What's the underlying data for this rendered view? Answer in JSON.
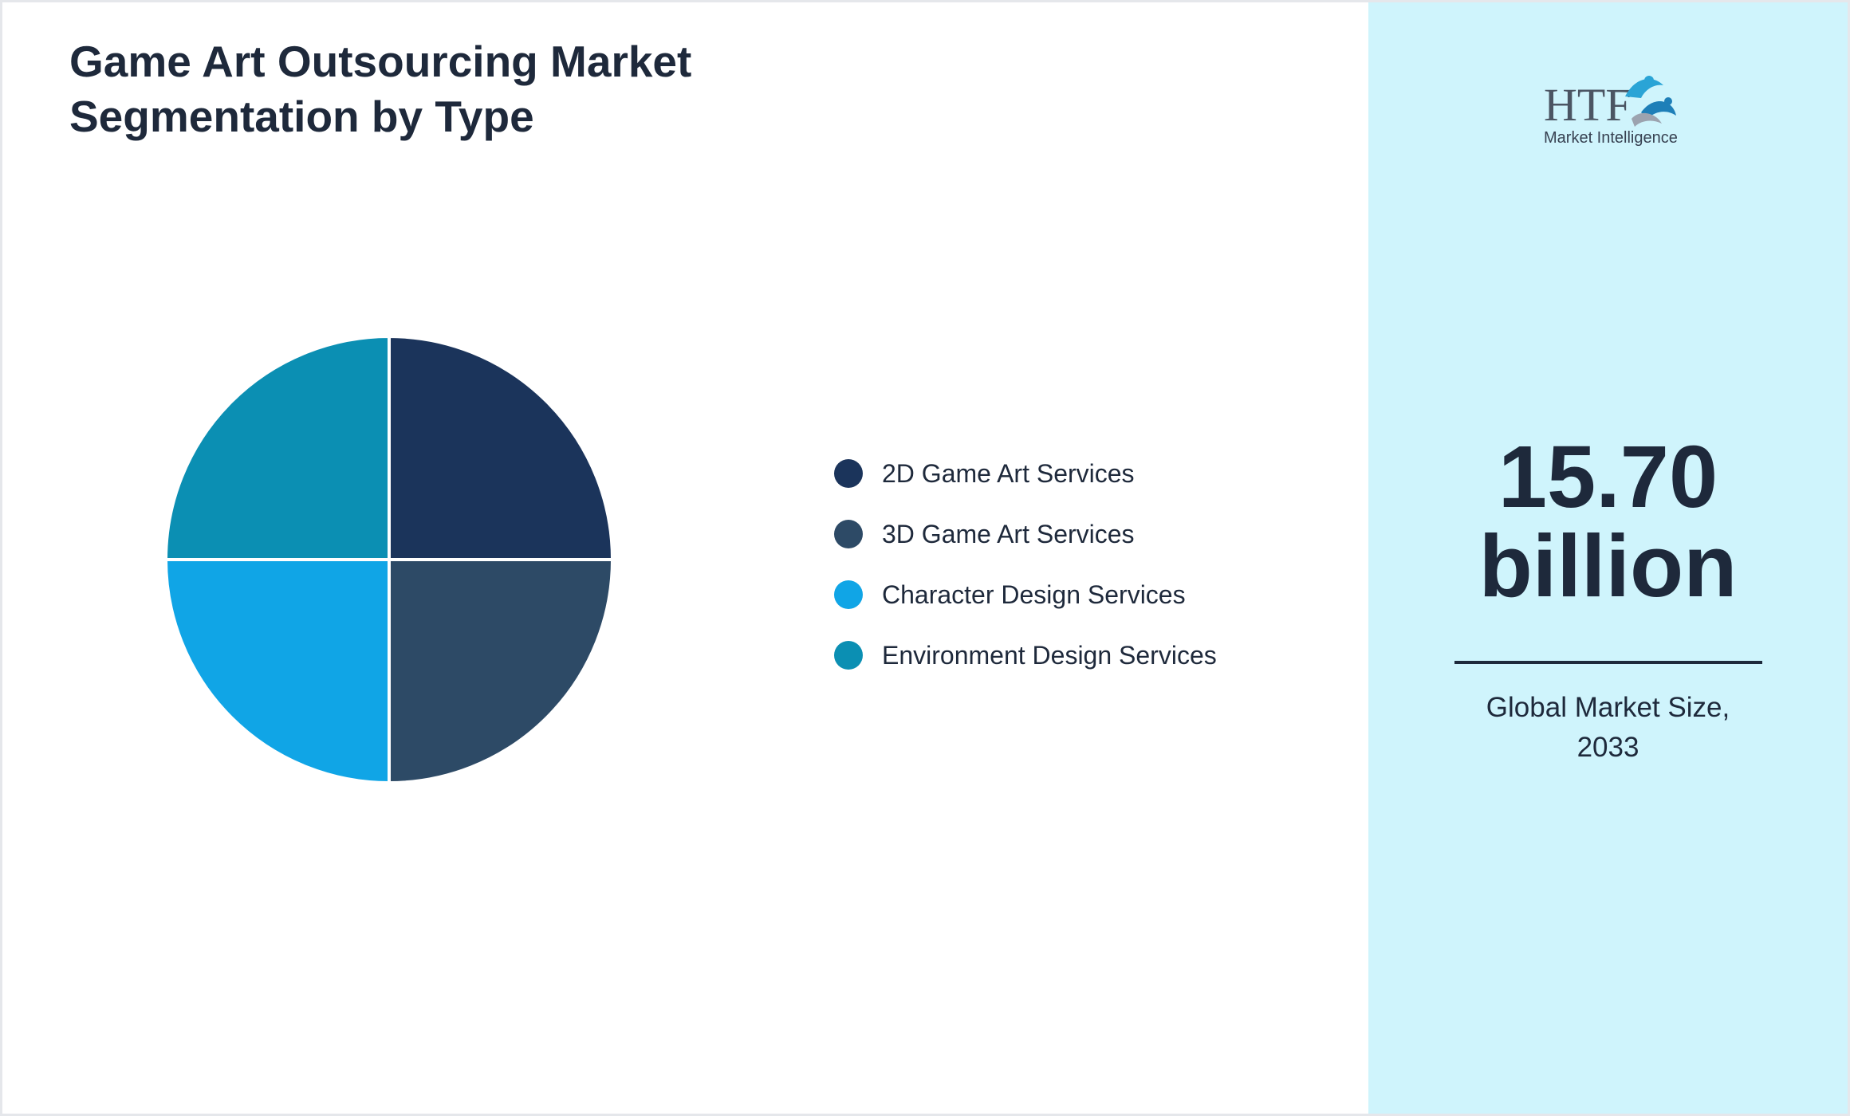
{
  "title_lines": [
    "Game Art Outsourcing Market",
    "Segmentation by Type"
  ],
  "chart_data": {
    "type": "pie",
    "title": "Game Art Outsourcing Market Segmentation by Type",
    "categories": [
      "2D Game Art Services",
      "3D Game Art Services",
      "Character Design Services",
      "Environment Design Services"
    ],
    "values": [
      25,
      25,
      25,
      25
    ],
    "colors": [
      "#1b345b",
      "#2d4a66",
      "#10a5e6",
      "#0b8fb3"
    ],
    "legend_position": "right"
  },
  "market": {
    "value_lines": [
      "15.70",
      "billion"
    ],
    "caption_lines": [
      "Global Market Size,",
      "2033"
    ]
  },
  "logo": {
    "text": "HTF",
    "subtext": "Market Intelligence"
  }
}
